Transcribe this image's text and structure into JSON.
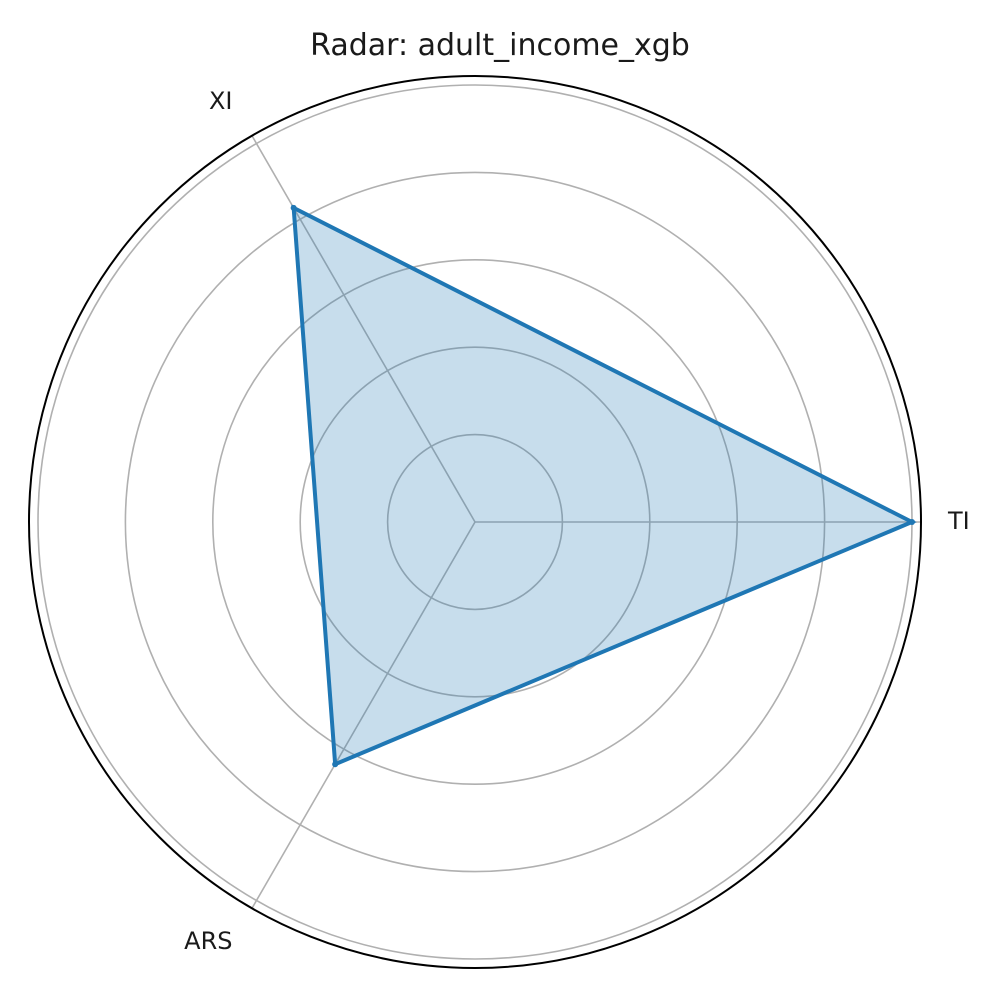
{
  "chart_data": {
    "type": "radar",
    "title": "Radar: adult_income_xgb",
    "axes": [
      "TI",
      "XI",
      "ARS"
    ],
    "series": [
      {
        "values": [
          1.0,
          0.83,
          0.64
        ]
      }
    ],
    "rlim": [
      0,
      1.0
    ],
    "r_grid": [
      0.2,
      0.4,
      0.6,
      0.8,
      1.0
    ],
    "grid": true,
    "colors": {
      "line": "#1f77b4",
      "fill": "#1f77b4",
      "grid": "#b0b0b0",
      "frame": "#000000"
    }
  }
}
